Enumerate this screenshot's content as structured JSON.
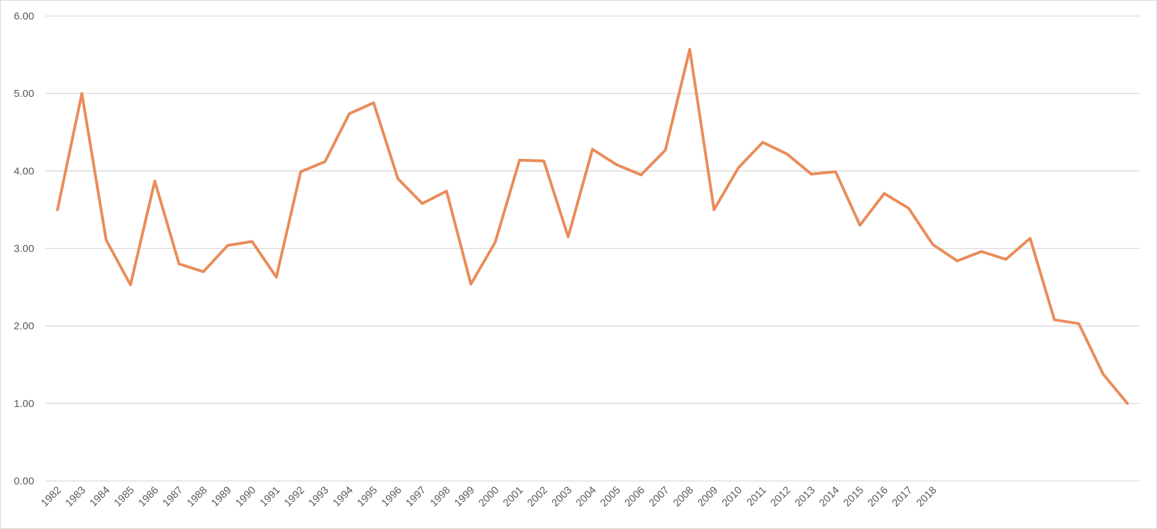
{
  "chart_data": {
    "type": "line",
    "categories": [
      "1982",
      "1983",
      "1984",
      "1985",
      "1986",
      "1987",
      "1988",
      "1989",
      "1990",
      "1991",
      "1992",
      "1993",
      "1994",
      "1995",
      "1996",
      "1997",
      "1998",
      "1999",
      "2000",
      "2001",
      "2002",
      "2003",
      "2004",
      "2005",
      "2006",
      "2007",
      "2008",
      "2009",
      "2010",
      "2011",
      "2012",
      "2013",
      "2014",
      "2015",
      "2016",
      "2017",
      "2018",
      null,
      null,
      null,
      null,
      null,
      null,
      null,
      null
    ],
    "series": [
      {
        "color": "#e98c59",
        "values": [
          3.5,
          5.0,
          3.11,
          2.53,
          3.87,
          2.8,
          2.7,
          3.04,
          3.09,
          2.63,
          3.99,
          4.12,
          4.74,
          4.88,
          3.9,
          3.58,
          3.74,
          2.54,
          3.08,
          4.14,
          4.13,
          3.15,
          4.28,
          4.08,
          3.95,
          4.27,
          5.57,
          3.5,
          4.04,
          4.37,
          4.22,
          3.96,
          3.99,
          3.3,
          3.71,
          3.52,
          3.05,
          2.84,
          2.96,
          2.86,
          3.13,
          2.08,
          2.03,
          1.38,
          1.0
        ]
      }
    ],
    "ylim": [
      0,
      6
    ],
    "yticks": [
      {
        "value": 0,
        "label": "0.00"
      },
      {
        "value": 1,
        "label": "1.00"
      },
      {
        "value": 2,
        "label": "2.00"
      },
      {
        "value": 3,
        "label": "3.00"
      },
      {
        "value": 4,
        "label": "4.00"
      },
      {
        "value": 5,
        "label": "5.00"
      },
      {
        "value": 6,
        "label": "6.00"
      }
    ],
    "grid": true
  }
}
